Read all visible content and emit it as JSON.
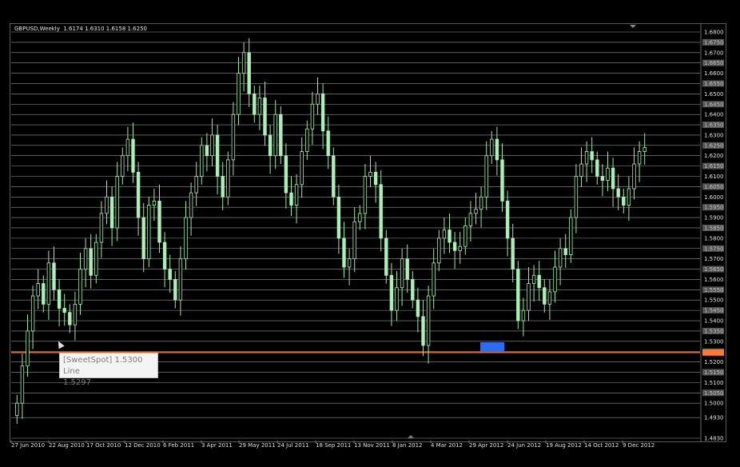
{
  "chart_header": {
    "title": "GBPUSD,Weekly  1.6174 1.6310 1.6158 1.6250"
  },
  "tooltip": {
    "line1": "[SweetSpot] 1.5300 Line",
    "line2": "1.5297"
  },
  "colors": {
    "background": "#000000",
    "candle": "#a8f0b4",
    "wick": "#9ee6a4",
    "level_line": "#c8c8c8",
    "highlight_line": "#ff7a2a",
    "marker": "#2d6cf0",
    "axis_text": "#e0e0e0",
    "price_box": "#555555"
  },
  "chart_data": {
    "type": "line",
    "title": "GBPUSD,Weekly",
    "x_tick_labels": [
      "27 Jun 2010",
      "22 Aug 2010",
      "17 Oct 2010",
      "12 Dec 2010",
      "6 Feb 2011",
      "3 Apr 2011",
      "29 May 2011",
      "24 Jul 2011",
      "18 Sep 2011",
      "13 Nov 2011",
      "8 Jan 2012",
      "4 Mar 2012",
      "29 Apr 2012",
      "24 Jun 2012",
      "19 Aug 2012",
      "14 Oct 2012",
      "9 Dec 2012"
    ],
    "y_tick_labels": [
      "1.6800",
      "1.6750",
      "1.6700",
      "1.6650",
      "1.6600",
      "1.6550",
      "1.6500",
      "1.6450",
      "1.6400",
      "1.6350",
      "1.6300",
      "1.6250",
      "1.6200",
      "1.6150",
      "1.6100",
      "1.6050",
      "1.6000",
      "1.5950",
      "1.5900",
      "1.5850",
      "1.5800",
      "1.5750",
      "1.5700",
      "1.5650",
      "1.5600",
      "1.5550",
      "1.5500",
      "1.5450",
      "1.5400",
      "1.5350",
      "1.5300",
      "1.5250",
      "1.5200",
      "1.5150",
      "1.5100",
      "1.5050",
      "1.5000",
      "1.4930",
      "1.4830"
    ],
    "ylim": [
      1.483,
      1.68
    ],
    "highlight_level": 1.53,
    "series": [
      {
        "values": [
          1.5,
          1.518,
          1.535,
          1.552,
          1.558,
          1.548,
          1.568,
          1.555,
          1.546,
          1.544,
          1.538,
          1.548,
          1.565,
          1.575,
          1.562,
          1.578,
          1.592,
          1.6,
          1.585,
          1.61,
          1.62,
          1.628,
          1.612,
          1.59,
          1.57,
          1.596,
          1.598,
          1.578,
          1.565,
          1.56,
          1.55,
          1.57,
          1.59,
          1.602,
          1.61,
          1.625,
          1.62,
          1.63,
          1.61,
          1.6,
          1.618,
          1.64,
          1.66,
          1.67,
          1.65,
          1.64,
          1.648,
          1.63,
          1.62,
          1.64,
          1.62,
          1.602,
          1.596,
          1.606,
          1.622,
          1.633,
          1.645,
          1.65,
          1.632,
          1.62,
          1.6,
          1.58,
          1.566,
          1.57,
          1.588,
          1.592,
          1.61,
          1.612,
          1.606,
          1.58,
          1.562,
          1.545,
          1.556,
          1.57,
          1.56,
          1.55,
          1.542,
          1.528,
          1.552,
          1.568,
          1.58,
          1.584,
          1.578,
          1.574,
          1.576,
          1.586,
          1.592,
          1.594,
          1.6,
          1.62,
          1.628,
          1.618,
          1.598,
          1.58,
          1.565,
          1.54,
          1.545,
          1.558,
          1.562,
          1.556,
          1.548,
          1.554,
          1.566,
          1.575,
          1.572,
          1.59,
          1.61,
          1.616,
          1.622,
          1.618,
          1.61,
          1.608,
          1.614,
          1.604,
          1.6,
          1.596,
          1.604,
          1.616,
          1.622,
          1.624
        ]
      }
    ]
  }
}
